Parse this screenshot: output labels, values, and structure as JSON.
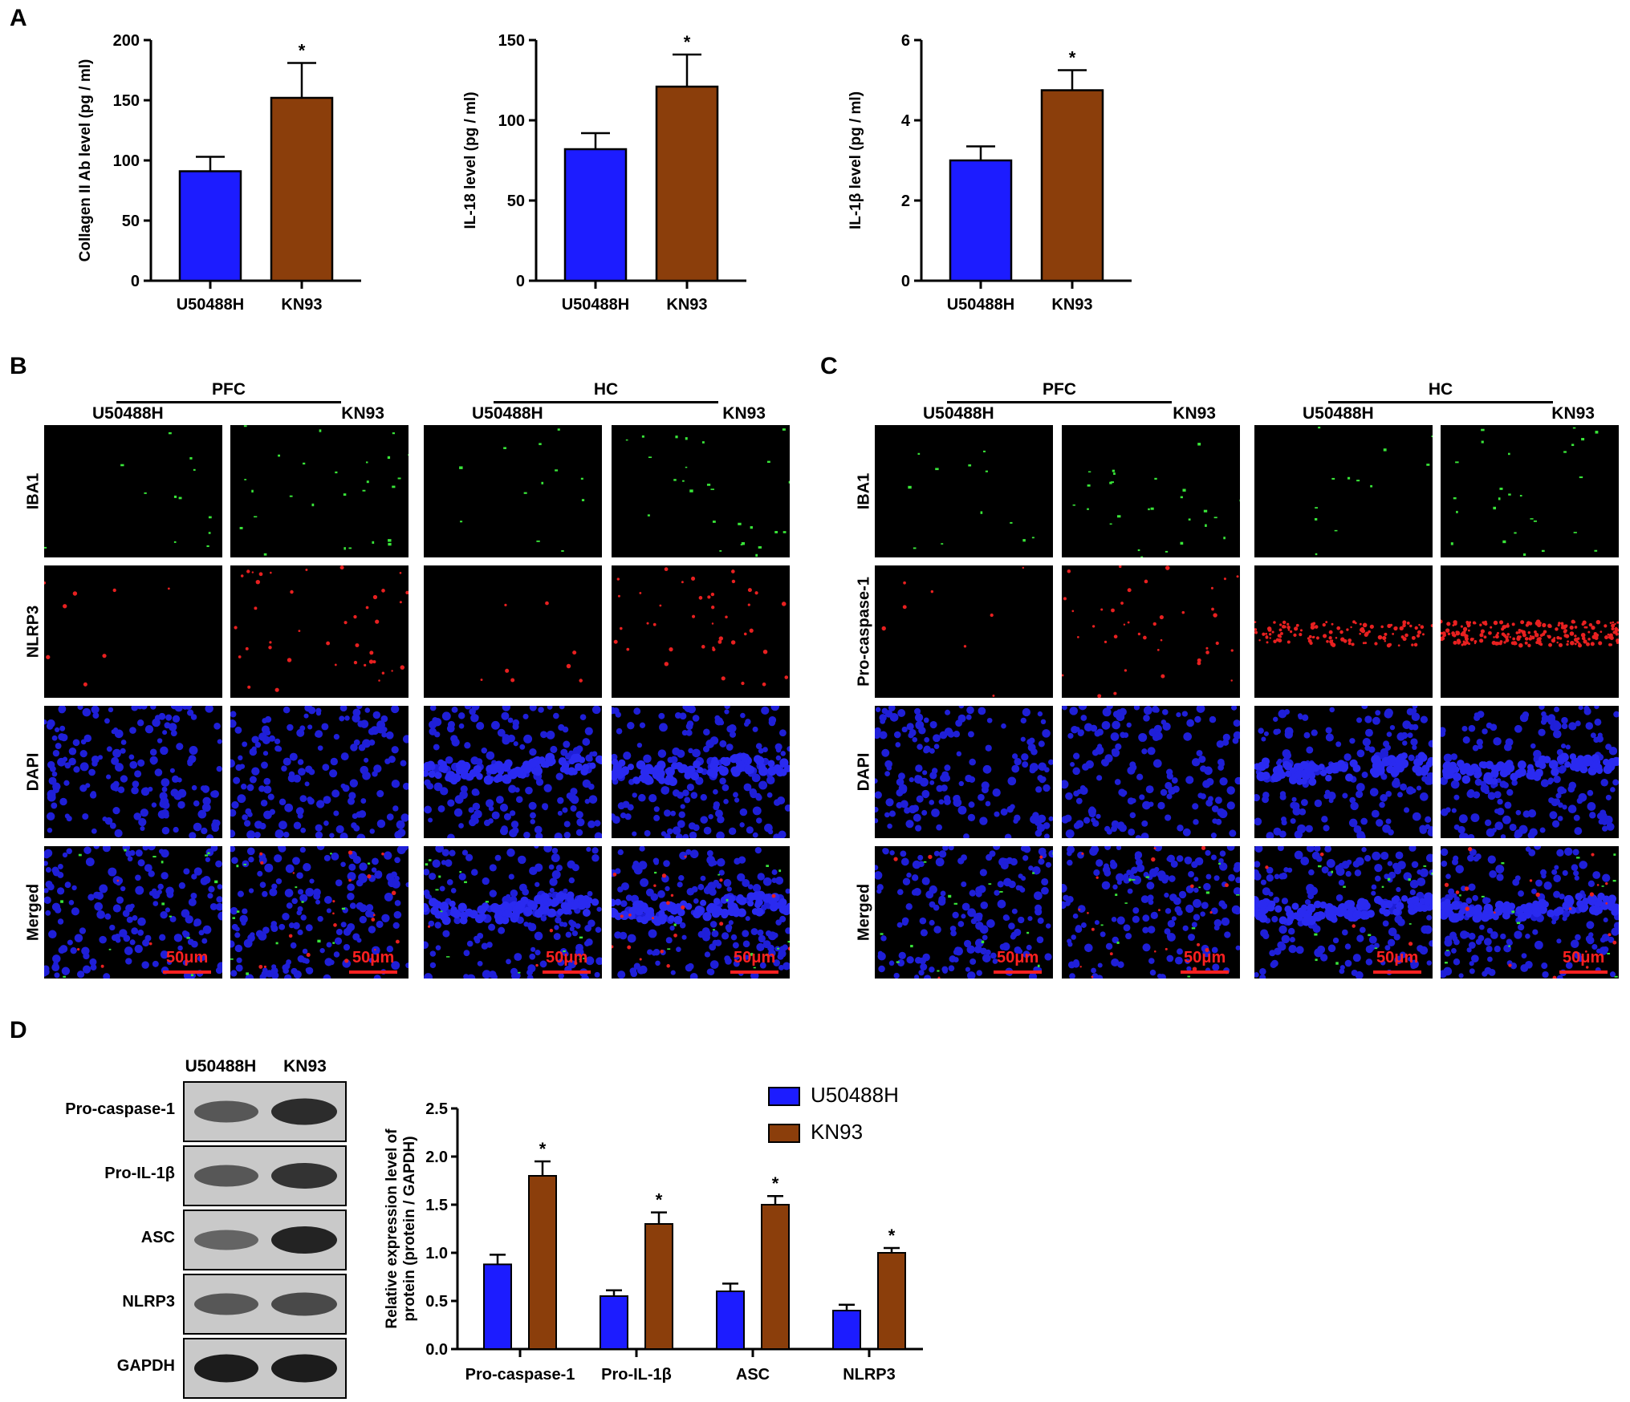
{
  "panels": {
    "A": "A",
    "B": "B",
    "C": "C",
    "D": "D"
  },
  "chart_data": [
    {
      "type": "bar",
      "categories": [
        "U50488H",
        "KN93"
      ],
      "values": [
        91,
        152
      ],
      "errors": [
        12,
        29
      ],
      "significance": [
        "",
        "*"
      ],
      "ylabel": "Collagen II Ab level (pg / ml)",
      "ylim": [
        0,
        200
      ],
      "yticks": [
        0,
        50,
        100,
        150,
        200
      ],
      "colors": [
        "#1c1cff",
        "#8b3e0b"
      ]
    },
    {
      "type": "bar",
      "categories": [
        "U50488H",
        "KN93"
      ],
      "values": [
        82,
        121
      ],
      "errors": [
        10,
        20
      ],
      "significance": [
        "",
        "*"
      ],
      "ylabel": "IL-18 level (pg / ml)",
      "ylim": [
        0,
        150
      ],
      "yticks": [
        0,
        50,
        100,
        150
      ],
      "colors": [
        "#1c1cff",
        "#8b3e0b"
      ]
    },
    {
      "type": "bar",
      "categories": [
        "U50488H",
        "KN93"
      ],
      "values": [
        3.0,
        4.75
      ],
      "errors": [
        0.35,
        0.5
      ],
      "significance": [
        "",
        "*"
      ],
      "ylabel": "IL-1β level (pg / ml)",
      "ylim": [
        0,
        6
      ],
      "yticks": [
        0,
        2,
        4,
        6
      ],
      "colors": [
        "#1c1cff",
        "#8b3e0b"
      ]
    },
    {
      "type": "bar",
      "categories": [
        "Pro-caspase-1",
        "Pro-IL-1β",
        "ASC",
        "NLRP3"
      ],
      "series": [
        {
          "name": "U50488H",
          "values": [
            0.88,
            0.55,
            0.6,
            0.4
          ],
          "errors": [
            0.1,
            0.06,
            0.08,
            0.06
          ],
          "color": "#1c1cff"
        },
        {
          "name": "KN93",
          "values": [
            1.8,
            1.3,
            1.5,
            1.0
          ],
          "errors": [
            0.15,
            0.12,
            0.09,
            0.05
          ],
          "color": "#8b3e0b"
        }
      ],
      "significance": [
        "*",
        "*",
        "*",
        "*"
      ],
      "ylabel": "Relative expression level of protein (protein / GAPDH)",
      "ylim": [
        0,
        2.5
      ],
      "yticks": [
        "0.0",
        "0.5",
        "1.0",
        "1.5",
        "2.0",
        "2.5"
      ],
      "legend": "top-right"
    }
  ],
  "panelB": {
    "groups": [
      "PFC",
      "HC"
    ],
    "columns": [
      "U50488H",
      "KN93",
      "U50488H",
      "KN93"
    ],
    "rows": [
      "IBA1",
      "NLRP3",
      "DAPI",
      "Merged"
    ],
    "scale": "50μm"
  },
  "panelC": {
    "groups": [
      "PFC",
      "HC"
    ],
    "columns": [
      "U50488H",
      "KN93",
      "U50488H",
      "KN93"
    ],
    "rows": [
      "IBA1",
      "Pro-caspase-1",
      "DAPI",
      "Merged"
    ],
    "scale": "50μm"
  },
  "panelD": {
    "columns": [
      "U50488H",
      "KN93"
    ],
    "bands": [
      "Pro-caspase-1",
      "Pro-IL-1β",
      "ASC",
      "NLRP3",
      "GAPDH"
    ]
  }
}
